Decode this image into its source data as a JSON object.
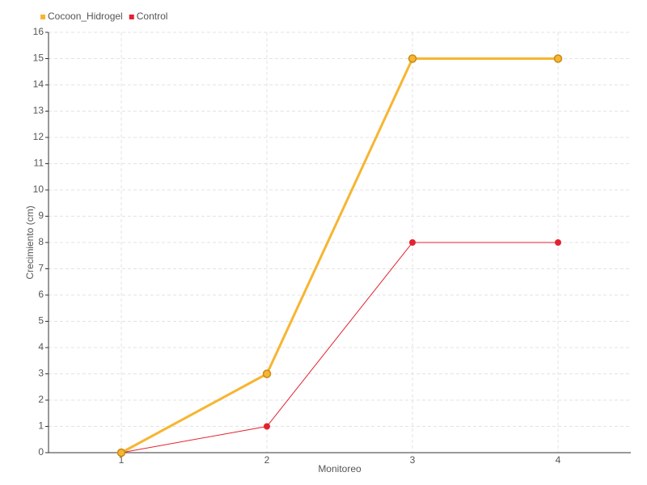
{
  "chart_data": {
    "type": "line",
    "categories": [
      "1",
      "2",
      "3",
      "4"
    ],
    "series": [
      {
        "name": "Cocoon_Hidrogel",
        "color": "#f7b531",
        "values": [
          0,
          3,
          15,
          15
        ]
      },
      {
        "name": "Control",
        "color": "#e32230",
        "values": [
          0,
          1,
          8,
          8
        ]
      }
    ],
    "x_label": "Monitoreo",
    "y_label": "Crecimiento (cm)",
    "ylim": [
      0,
      16
    ],
    "yticks": [
      0,
      1,
      2,
      3,
      4,
      5,
      6,
      7,
      8,
      9,
      10,
      11,
      12,
      13,
      14,
      15,
      16
    ],
    "grid": true,
    "legend": "top-left"
  }
}
